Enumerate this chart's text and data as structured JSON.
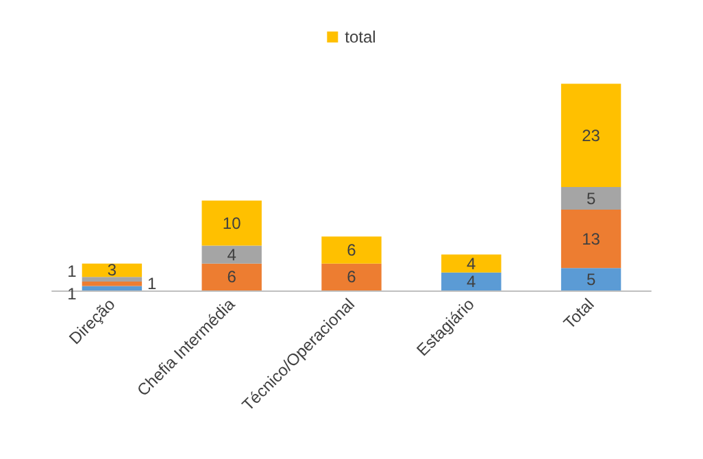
{
  "chart_data": {
    "type": "bar",
    "stacked": true,
    "categories": [
      "Direção",
      "Chefia Intermédia",
      "Técnico/Operacional",
      "Estagiário",
      "Total"
    ],
    "series": [
      {
        "color": "#5b9bd5",
        "values": [
          1,
          null,
          null,
          4,
          5
        ]
      },
      {
        "color": "#ed7d31",
        "values": [
          1,
          6,
          6,
          null,
          13
        ]
      },
      {
        "color": "#a5a5a5",
        "values": [
          1,
          4,
          null,
          null,
          5
        ]
      },
      {
        "name": "total",
        "color": "#ffc000",
        "values": [
          3,
          10,
          6,
          4,
          23
        ]
      }
    ],
    "data_labels": true,
    "legend": "top",
    "tick_labels": "x"
  }
}
